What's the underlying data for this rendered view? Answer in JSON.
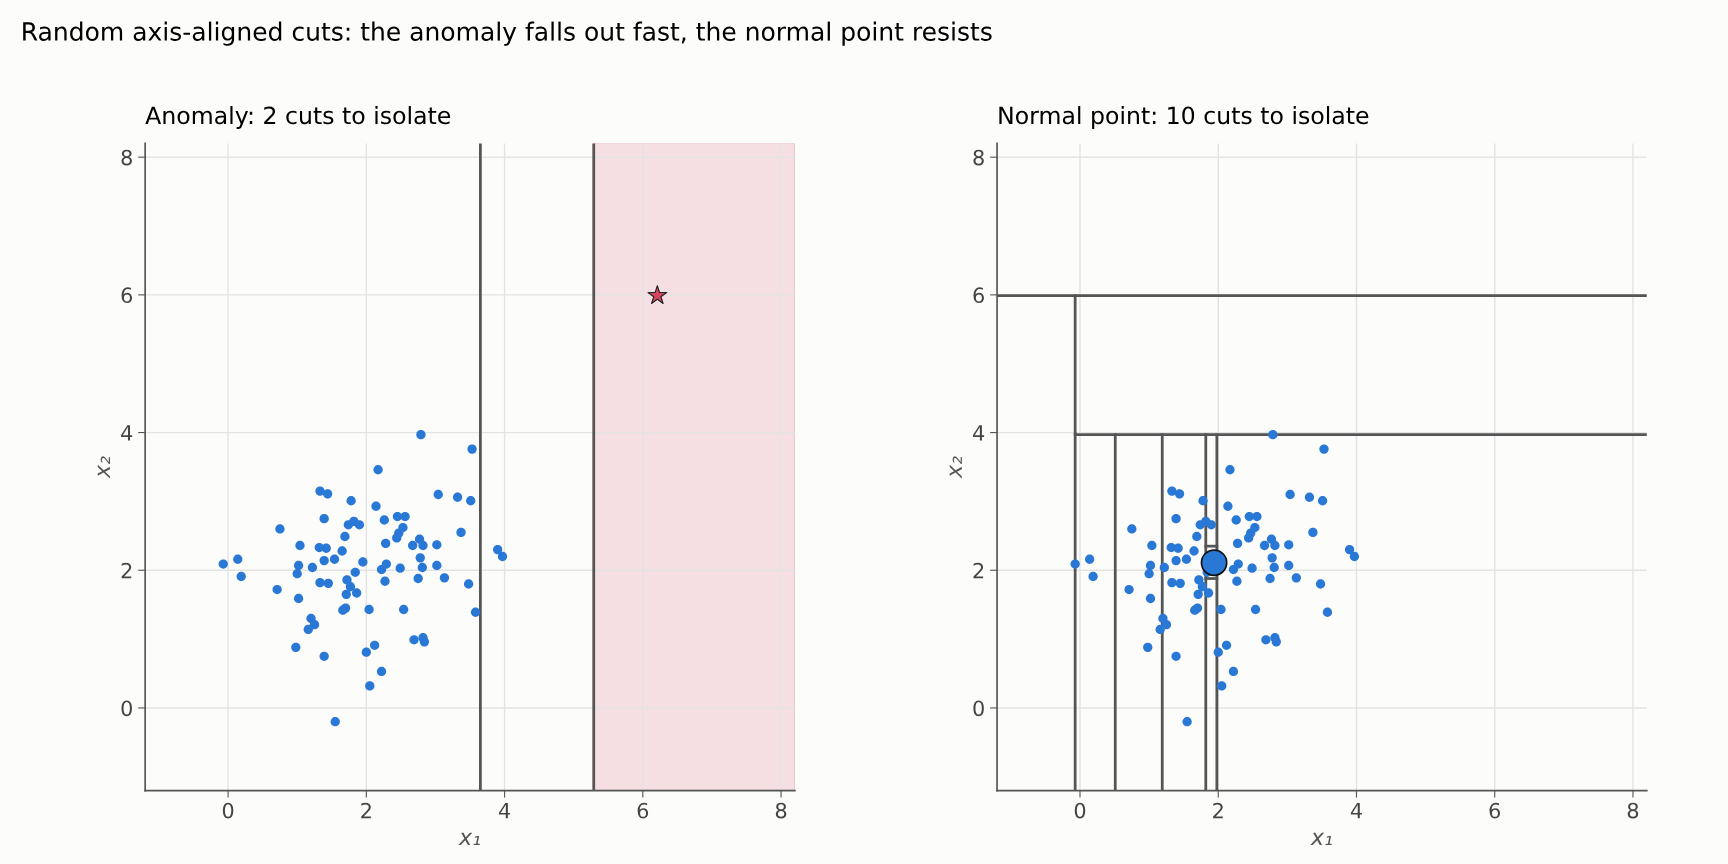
{
  "chart_data": [
    {
      "type": "scatter",
      "title": "Anomaly: 2 cuts to isolate",
      "xlabel": "x₁",
      "ylabel": "x₂",
      "annotations": [
        "Random axis-aligned cuts: the anomaly falls out fast, the normal point resists"
      ],
      "xlim": [
        -1.2,
        8.2
      ],
      "ylim": [
        -1.2,
        8.2
      ],
      "xticks": [
        0,
        2,
        4,
        6,
        8
      ],
      "yticks": [
        0,
        2,
        4,
        6,
        8
      ],
      "grid": true,
      "series": [
        {
          "marker": "circle",
          "color": "#2a78d6",
          "x": [
            -0.07,
            0.14,
            0.19,
            0.75,
            0.71,
            1.04,
            1.02,
            1.0,
            1.22,
            1.02,
            1.2,
            1.25,
            1.16,
            0.98,
            1.39,
            1.33,
            1.44,
            1.39,
            1.32,
            1.42,
            1.39,
            1.54,
            1.33,
            1.45,
            1.65,
            1.69,
            1.74,
            1.82,
            1.9,
            1.78,
            1.72,
            1.77,
            1.84,
            1.71,
            1.86,
            1.95,
            1.66,
            1.7,
            2.04,
            2.17,
            2.14,
            2.26,
            2.28,
            2.29,
            2.22,
            2.27,
            2.45,
            2.56,
            2.53,
            2.47,
            2.44,
            2.49,
            2.54,
            2.79,
            2.77,
            2.67,
            2.82,
            2.78,
            2.81,
            2.75,
            2.69,
            2.82,
            2.84,
            2.12,
            2.0,
            2.22,
            2.05,
            1.55,
            3.04,
            3.02,
            3.02,
            3.13,
            3.32,
            3.37,
            3.53,
            3.51,
            3.48,
            3.58,
            3.9,
            3.97
          ],
          "values": [
            2.09,
            2.16,
            1.91,
            2.6,
            1.72,
            2.36,
            2.07,
            1.95,
            2.04,
            1.59,
            1.3,
            1.21,
            1.14,
            0.88,
            0.75,
            3.15,
            3.11,
            2.75,
            2.33,
            2.32,
            2.14,
            2.16,
            1.82,
            1.81,
            2.28,
            2.49,
            2.66,
            2.71,
            2.66,
            3.01,
            1.86,
            1.76,
            1.97,
            1.65,
            1.67,
            2.12,
            1.42,
            1.45,
            1.43,
            3.46,
            2.93,
            2.73,
            2.39,
            2.09,
            2.01,
            1.84,
            2.78,
            2.78,
            2.62,
            2.54,
            2.47,
            2.03,
            1.43,
            3.97,
            2.45,
            2.36,
            2.36,
            2.18,
            2.04,
            1.88,
            0.99,
            1.02,
            0.96,
            0.91,
            0.81,
            0.53,
            0.32,
            -0.2,
            3.1,
            2.37,
            2.07,
            1.89,
            3.06,
            2.55,
            3.76,
            3.01,
            1.8,
            1.39,
            2.3,
            2.2
          ]
        },
        {
          "marker": "star",
          "color": "#d6455c",
          "x": [
            6.21
          ],
          "values": [
            5.99
          ]
        }
      ],
      "ref_lines": [
        {
          "axis": "x",
          "value": 3.65,
          "color": "#555555"
        },
        {
          "axis": "x",
          "value": 5.29,
          "color": "#555555"
        }
      ],
      "bands": [
        {
          "axis": "x",
          "from": 5.29,
          "to": 8.2,
          "color": "#f5dfe3"
        }
      ]
    },
    {
      "type": "scatter",
      "title": "Normal point: 10 cuts to isolate",
      "xlabel": "x₁",
      "ylabel": "x₂",
      "xlim": [
        -1.2,
        8.2
      ],
      "ylim": [
        -1.2,
        8.2
      ],
      "xticks": [
        0,
        2,
        4,
        6,
        8
      ],
      "yticks": [
        0,
        2,
        4,
        6,
        8
      ],
      "grid": true,
      "series": [
        {
          "marker": "circle",
          "color": "#2a78d6",
          "x": [
            -0.07,
            0.14,
            0.19,
            0.75,
            0.71,
            1.04,
            1.02,
            1.0,
            1.22,
            1.02,
            1.2,
            1.25,
            1.16,
            0.98,
            1.39,
            1.33,
            1.44,
            1.39,
            1.32,
            1.42,
            1.39,
            1.54,
            1.33,
            1.45,
            1.65,
            1.69,
            1.74,
            1.82,
            1.9,
            1.78,
            1.72,
            1.77,
            1.84,
            1.71,
            1.86,
            1.66,
            1.7,
            2.04,
            2.17,
            2.14,
            2.26,
            2.28,
            2.29,
            2.22,
            2.27,
            2.45,
            2.56,
            2.53,
            2.47,
            2.44,
            2.49,
            2.54,
            2.79,
            2.77,
            2.67,
            2.82,
            2.78,
            2.81,
            2.75,
            2.69,
            2.82,
            2.84,
            2.12,
            2.0,
            2.22,
            2.05,
            1.55,
            3.04,
            3.02,
            3.02,
            3.13,
            3.32,
            3.37,
            3.53,
            3.51,
            3.48,
            3.58,
            3.9,
            3.97
          ],
          "values": [
            2.09,
            2.16,
            1.91,
            2.6,
            1.72,
            2.36,
            2.07,
            1.95,
            2.04,
            1.59,
            1.3,
            1.21,
            1.14,
            0.88,
            0.75,
            3.15,
            3.11,
            2.75,
            2.33,
            2.32,
            2.14,
            2.16,
            1.82,
            1.81,
            2.28,
            2.49,
            2.66,
            2.71,
            2.66,
            3.01,
            1.86,
            1.76,
            1.97,
            1.65,
            1.67,
            1.42,
            1.45,
            1.43,
            3.46,
            2.93,
            2.73,
            2.39,
            2.09,
            2.01,
            1.84,
            2.78,
            2.78,
            2.62,
            2.54,
            2.47,
            2.03,
            1.43,
            3.97,
            2.45,
            2.36,
            2.36,
            2.18,
            2.04,
            1.88,
            0.99,
            1.02,
            0.96,
            0.91,
            0.81,
            0.53,
            0.32,
            -0.2,
            3.1,
            2.37,
            2.07,
            1.89,
            3.06,
            2.55,
            3.76,
            3.01,
            1.8,
            1.39,
            2.3,
            2.2
          ]
        },
        {
          "type": "line",
          "color": "#555555",
          "x": [
            -1.2,
            8.2
          ],
          "values": [
            5.99,
            5.99
          ]
        },
        {
          "type": "line",
          "color": "#555555",
          "x": [
            -0.07,
            -0.07
          ],
          "values": [
            -1.2,
            5.99
          ]
        },
        {
          "type": "line",
          "color": "#555555",
          "x": [
            -0.07,
            8.2
          ],
          "values": [
            3.97,
            3.97
          ]
        },
        {
          "type": "line",
          "color": "#555555",
          "x": [
            0.51,
            0.51
          ],
          "values": [
            -1.2,
            3.97
          ]
        },
        {
          "type": "line",
          "color": "#555555",
          "x": [
            1.19,
            1.19
          ],
          "values": [
            -1.2,
            3.97
          ]
        },
        {
          "type": "line",
          "color": "#555555",
          "x": [
            1.82,
            1.82
          ],
          "values": [
            -1.2,
            3.97
          ]
        },
        {
          "type": "line",
          "color": "#555555",
          "x": [
            1.98,
            1.98
          ],
          "values": [
            -1.2,
            3.97
          ]
        },
        {
          "type": "line",
          "color": "#555555",
          "x": [
            1.82,
            1.98
          ],
          "values": [
            2.35,
            2.35
          ]
        },
        {
          "type": "line",
          "color": "#555555",
          "x": [
            1.82,
            1.98
          ],
          "values": [
            1.88,
            1.88
          ]
        },
        {
          "type": "bubble",
          "marker": "circle",
          "color": "#2a78d6",
          "x": [
            1.94
          ],
          "values": [
            2.11
          ],
          "sizes": [
            1
          ]
        }
      ]
    }
  ]
}
